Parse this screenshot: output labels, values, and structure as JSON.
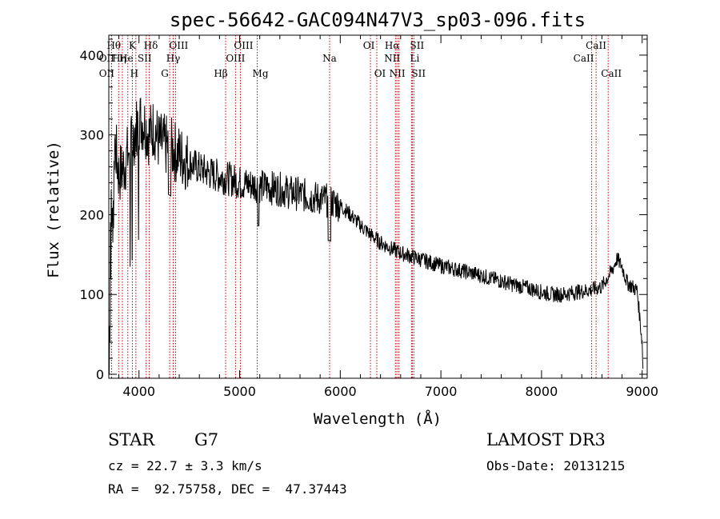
{
  "colors": {
    "line_marker": "#c00000",
    "spectrum": "#000000",
    "axes": "#000000"
  },
  "info": {
    "object_type": "STAR",
    "subclass": "G7",
    "redshift": "cz = 22.7 ± 3.3 km/s",
    "coords": "RA =  92.75758, DEC =  47.37443",
    "survey": "LAMOST DR3",
    "obs_date": "Obs-Date: 20131215"
  },
  "chart_data": {
    "type": "line",
    "title": "spec-56642-GAC094N47V3_sp03-096.fits",
    "xlabel": "Wavelength (Å)",
    "ylabel": "Flux (relative)",
    "xlim": [
      3700,
      9050
    ],
    "ylim": [
      -5,
      425
    ],
    "xticks": [
      4000,
      5000,
      6000,
      7000,
      8000,
      9000
    ],
    "yticks": [
      0,
      100,
      200,
      300,
      400
    ],
    "xtick_labels": [
      "4000",
      "5000",
      "6000",
      "7000",
      "8000",
      "9000"
    ],
    "ytick_labels": [
      "0",
      "100",
      "200",
      "300",
      "400"
    ],
    "spectrum_anchors": [
      [
        3700,
        0
      ],
      [
        3720,
        200
      ],
      [
        3760,
        290
      ],
      [
        3800,
        250
      ],
      [
        3850,
        260
      ],
      [
        3900,
        280
      ],
      [
        3950,
        300
      ],
      [
        4000,
        320
      ],
      [
        4050,
        315
      ],
      [
        4100,
        300
      ],
      [
        4150,
        310
      ],
      [
        4200,
        290
      ],
      [
        4300,
        285
      ],
      [
        4400,
        275
      ],
      [
        4500,
        265
      ],
      [
        4600,
        258
      ],
      [
        4700,
        252
      ],
      [
        4800,
        248
      ],
      [
        4900,
        245
      ],
      [
        5000,
        240
      ],
      [
        5100,
        238
      ],
      [
        5200,
        236
      ],
      [
        5300,
        234
      ],
      [
        5400,
        232
      ],
      [
        5500,
        228
      ],
      [
        5600,
        226
      ],
      [
        5700,
        222
      ],
      [
        5800,
        220
      ],
      [
        5900,
        217
      ],
      [
        6000,
        212
      ],
      [
        6100,
        200
      ],
      [
        6200,
        187
      ],
      [
        6300,
        175
      ],
      [
        6400,
        165
      ],
      [
        6500,
        158
      ],
      [
        6600,
        152
      ],
      [
        6700,
        148
      ],
      [
        6800,
        144
      ],
      [
        6900,
        140
      ],
      [
        7000,
        136
      ],
      [
        7100,
        133
      ],
      [
        7200,
        130
      ],
      [
        7300,
        127
      ],
      [
        7400,
        124
      ],
      [
        7500,
        120
      ],
      [
        7600,
        117
      ],
      [
        7700,
        113
      ],
      [
        7800,
        110
      ],
      [
        7900,
        107
      ],
      [
        8000,
        103
      ],
      [
        8100,
        100
      ],
      [
        8200,
        100
      ],
      [
        8300,
        102
      ],
      [
        8400,
        104
      ],
      [
        8500,
        106
      ],
      [
        8600,
        110
      ],
      [
        8700,
        130
      ],
      [
        8750,
        145
      ],
      [
        8800,
        135
      ],
      [
        8850,
        115
      ],
      [
        8900,
        110
      ],
      [
        8950,
        105
      ],
      [
        9000,
        40
      ],
      [
        9010,
        0
      ]
    ],
    "spectral_lines": [
      {
        "name": "Hθ",
        "wavelength": 3798
      },
      {
        "name": "OII",
        "wavelength": 3727
      },
      {
        "name": "OII",
        "wavelength": 3727
      },
      {
        "name": "Hη",
        "wavelength": 3835
      },
      {
        "name": "K",
        "wavelength": 3934
      },
      {
        "name": "He",
        "wavelength": 3889
      },
      {
        "name": "H",
        "wavelength": 3969
      },
      {
        "name": "Hδ",
        "wavelength": 4102
      },
      {
        "name": "SII",
        "wavelength": 4072
      },
      {
        "name": "OIII",
        "wavelength": 4363
      },
      {
        "name": "Hγ",
        "wavelength": 4340
      },
      {
        "name": "G",
        "wavelength": 4305
      },
      {
        "name": "Hβ",
        "wavelength": 4861
      },
      {
        "name": "OIII",
        "wavelength": 5007
      },
      {
        "name": "OIII",
        "wavelength": 4959
      },
      {
        "name": "Mg",
        "wavelength": 5175
      },
      {
        "name": "Na",
        "wavelength": 5894
      },
      {
        "name": "OI",
        "wavelength": 6300
      },
      {
        "name": "OI",
        "wavelength": 6363
      },
      {
        "name": "Hα",
        "wavelength": 6563
      },
      {
        "name": "NII",
        "wavelength": 6548
      },
      {
        "name": "NII",
        "wavelength": 6583
      },
      {
        "name": "SII",
        "wavelength": 6716
      },
      {
        "name": "Li",
        "wavelength": 6708
      },
      {
        "name": "SII",
        "wavelength": 6731
      },
      {
        "name": "CaII",
        "wavelength": 8542
      },
      {
        "name": "CaII",
        "wavelength": 8498
      },
      {
        "name": "CaII",
        "wavelength": 8662
      }
    ]
  }
}
